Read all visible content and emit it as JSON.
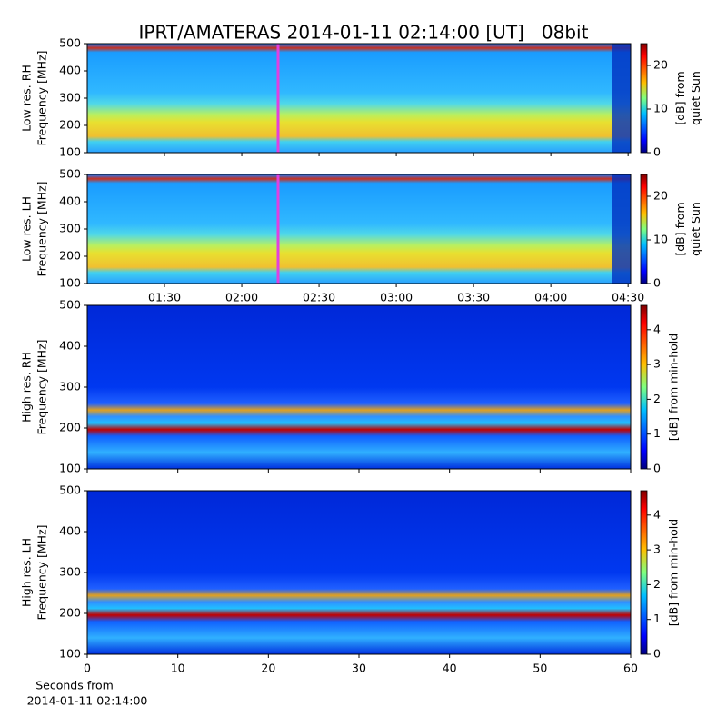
{
  "title": "IPRT/AMATERAS 2014-01-11 02:14:00 [UT]   08bit",
  "chart_data": [
    {
      "type": "heatmap",
      "ylabel": [
        "Low res. RH",
        "Frequency [MHz]"
      ],
      "xlim": [
        "01:00",
        "04:31"
      ],
      "ylim": [
        100,
        500
      ],
      "yticks": [
        100,
        200,
        300,
        400,
        500
      ],
      "colorbar_label": [
        "[dB] from",
        "quiet Sun"
      ],
      "clim": [
        0,
        25
      ],
      "cticks": [
        0,
        10,
        20
      ]
    },
    {
      "type": "heatmap",
      "ylabel": [
        "Low res. LH",
        "Frequency [MHz]"
      ],
      "xlim": [
        "01:00",
        "04:31"
      ],
      "xticks": [
        "01:30",
        "02:00",
        "02:30",
        "03:00",
        "03:30",
        "04:00",
        "04:30"
      ],
      "ylim": [
        100,
        500
      ],
      "yticks": [
        100,
        200,
        300,
        400,
        500
      ],
      "colorbar_label": [
        "[dB] from",
        "quiet Sun"
      ],
      "clim": [
        0,
        25
      ],
      "cticks": [
        0,
        10,
        20
      ]
    },
    {
      "type": "heatmap",
      "ylabel": [
        "High res. RH",
        "Frequency [MHz]"
      ],
      "xlim": [
        0,
        60
      ],
      "ylim": [
        100,
        500
      ],
      "yticks": [
        100,
        200,
        300,
        400,
        500
      ],
      "colorbar_label": [
        "[dB] from min-hold"
      ],
      "clim": [
        0,
        4.7
      ],
      "cticks": [
        0,
        1,
        2,
        3,
        4
      ]
    },
    {
      "type": "heatmap",
      "ylabel": [
        "High res. LH",
        "Frequency [MHz]"
      ],
      "xlim": [
        0,
        60
      ],
      "xticks": [
        0,
        10,
        20,
        30,
        40,
        50,
        60
      ],
      "xlabel": [
        "Seconds from",
        "2014-01-11 02:14:00"
      ],
      "ylim": [
        100,
        500
      ],
      "yticks": [
        100,
        200,
        300,
        400,
        500
      ],
      "colorbar_label": [
        "[dB] from min-hold"
      ],
      "clim": [
        0,
        4.7
      ],
      "cticks": [
        0,
        1,
        2,
        3,
        4
      ]
    }
  ]
}
